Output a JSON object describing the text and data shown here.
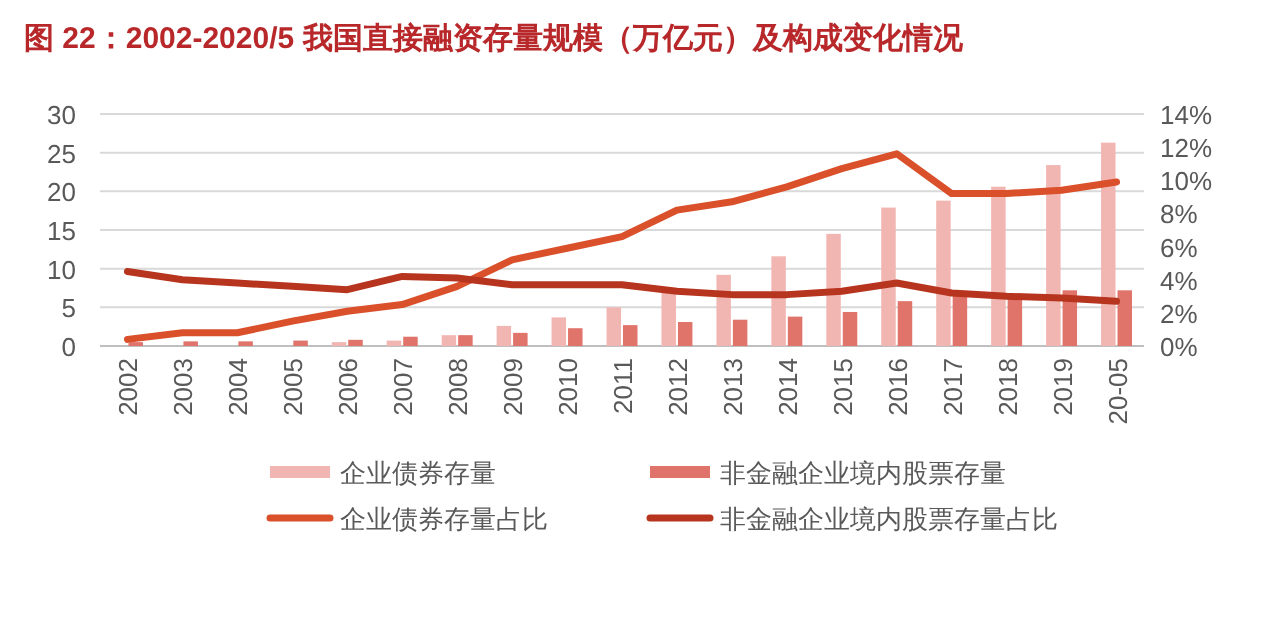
{
  "chart_data": {
    "type": "bar",
    "title": "图 22：2002-2020/5 我国直接融资存量规模（万亿元）及构成变化情况",
    "categories": [
      "2002",
      "2003",
      "2004",
      "2005",
      "2006",
      "2007",
      "2008",
      "2009",
      "2010",
      "2011",
      "2012",
      "2013",
      "2014",
      "2015",
      "2016",
      "2017",
      "2018",
      "2019",
      "20-05"
    ],
    "series": [
      {
        "name": "企业债券存量",
        "color": "#f2b6b2",
        "values": [
          null,
          null,
          null,
          null,
          0.5,
          0.7,
          1.4,
          2.6,
          3.7,
          5.0,
          7.0,
          9.2,
          11.6,
          14.5,
          17.9,
          18.8,
          20.6,
          23.4,
          26.3
        ]
      },
      {
        "name": "非金融企业境内股票存量",
        "color": "#e0736a",
        "values": [
          0.5,
          0.6,
          0.6,
          0.7,
          0.8,
          1.2,
          1.4,
          1.7,
          2.3,
          2.7,
          3.1,
          3.4,
          3.8,
          4.4,
          5.8,
          6.6,
          6.3,
          7.2,
          7.2
        ]
      },
      {
        "name": "企业债券存量占比",
        "type": "line",
        "axis": "y2",
        "color": "#d9502b",
        "values": [
          0.4,
          0.8,
          0.8,
          1.5,
          2.1,
          2.5,
          3.6,
          5.2,
          5.9,
          6.6,
          8.2,
          8.7,
          9.6,
          10.7,
          11.6,
          9.2,
          9.2,
          9.4,
          9.9
        ]
      },
      {
        "name": "非金融企业境内股票存量占比",
        "type": "line",
        "axis": "y2",
        "color": "#b7351f",
        "values": [
          4.5,
          4.0,
          3.8,
          3.6,
          3.4,
          4.2,
          4.1,
          3.7,
          3.7,
          3.7,
          3.3,
          3.1,
          3.1,
          3.3,
          3.8,
          3.2,
          3.0,
          2.9,
          2.7
        ]
      }
    ],
    "ylim": [
      0,
      30
    ],
    "yticks": [
      0,
      5,
      10,
      15,
      20,
      25,
      30
    ],
    "y2lim": [
      0,
      14
    ],
    "y2ticks": [
      {
        "value": 0,
        "label": "0%"
      },
      {
        "value": 2,
        "label": "2%"
      },
      {
        "value": 4,
        "label": "4%"
      },
      {
        "value": 6,
        "label": "6%"
      },
      {
        "value": 8,
        "label": "8%"
      },
      {
        "value": 10,
        "label": "10%"
      },
      {
        "value": 12,
        "label": "12%"
      },
      {
        "value": 14,
        "label": "14%"
      }
    ],
    "grid": "y",
    "legend": "bottom"
  }
}
